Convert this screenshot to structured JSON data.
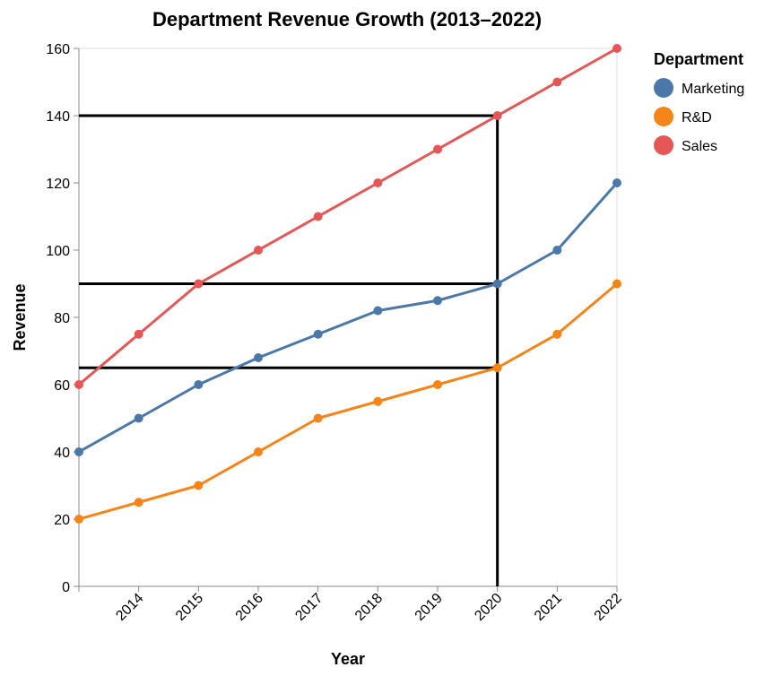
{
  "chart_data": {
    "type": "line",
    "title": "Department Revenue Growth (2013–2022)",
    "xlabel": "Year",
    "ylabel": "Revenue",
    "x": [
      2013,
      2014,
      2015,
      2016,
      2017,
      2018,
      2019,
      2020,
      2021,
      2022
    ],
    "x_tick_labels": [
      "2014",
      "2015",
      "2016",
      "2017",
      "2018",
      "2019",
      "2020",
      "2021",
      "2022"
    ],
    "y_ticks": [
      "0",
      "20",
      "40",
      "60",
      "80",
      "100",
      "120",
      "140",
      "160"
    ],
    "xlim": [
      2013,
      2022
    ],
    "ylim": [
      0,
      160
    ],
    "grid": false,
    "legend": {
      "title": "Department",
      "position": "right"
    },
    "series": [
      {
        "name": "Marketing",
        "color": "#4c78a8",
        "values": [
          40,
          50,
          60,
          68,
          75,
          82,
          85,
          90,
          100,
          120
        ]
      },
      {
        "name": "R&D",
        "color": "#f58518",
        "values": [
          20,
          25,
          30,
          40,
          50,
          55,
          60,
          65,
          75,
          90
        ]
      },
      {
        "name": "Sales",
        "color": "#e45756",
        "values": [
          60,
          75,
          90,
          100,
          110,
          120,
          130,
          140,
          150,
          160
        ]
      }
    ],
    "annotations": {
      "vertical_rule": {
        "x": 2020,
        "color": "#000000"
      },
      "horizontal_rules": [
        {
          "y": 140,
          "series": "Sales"
        },
        {
          "y": 90,
          "series": "Marketing"
        },
        {
          "y": 65,
          "series": "R&D"
        }
      ]
    }
  }
}
